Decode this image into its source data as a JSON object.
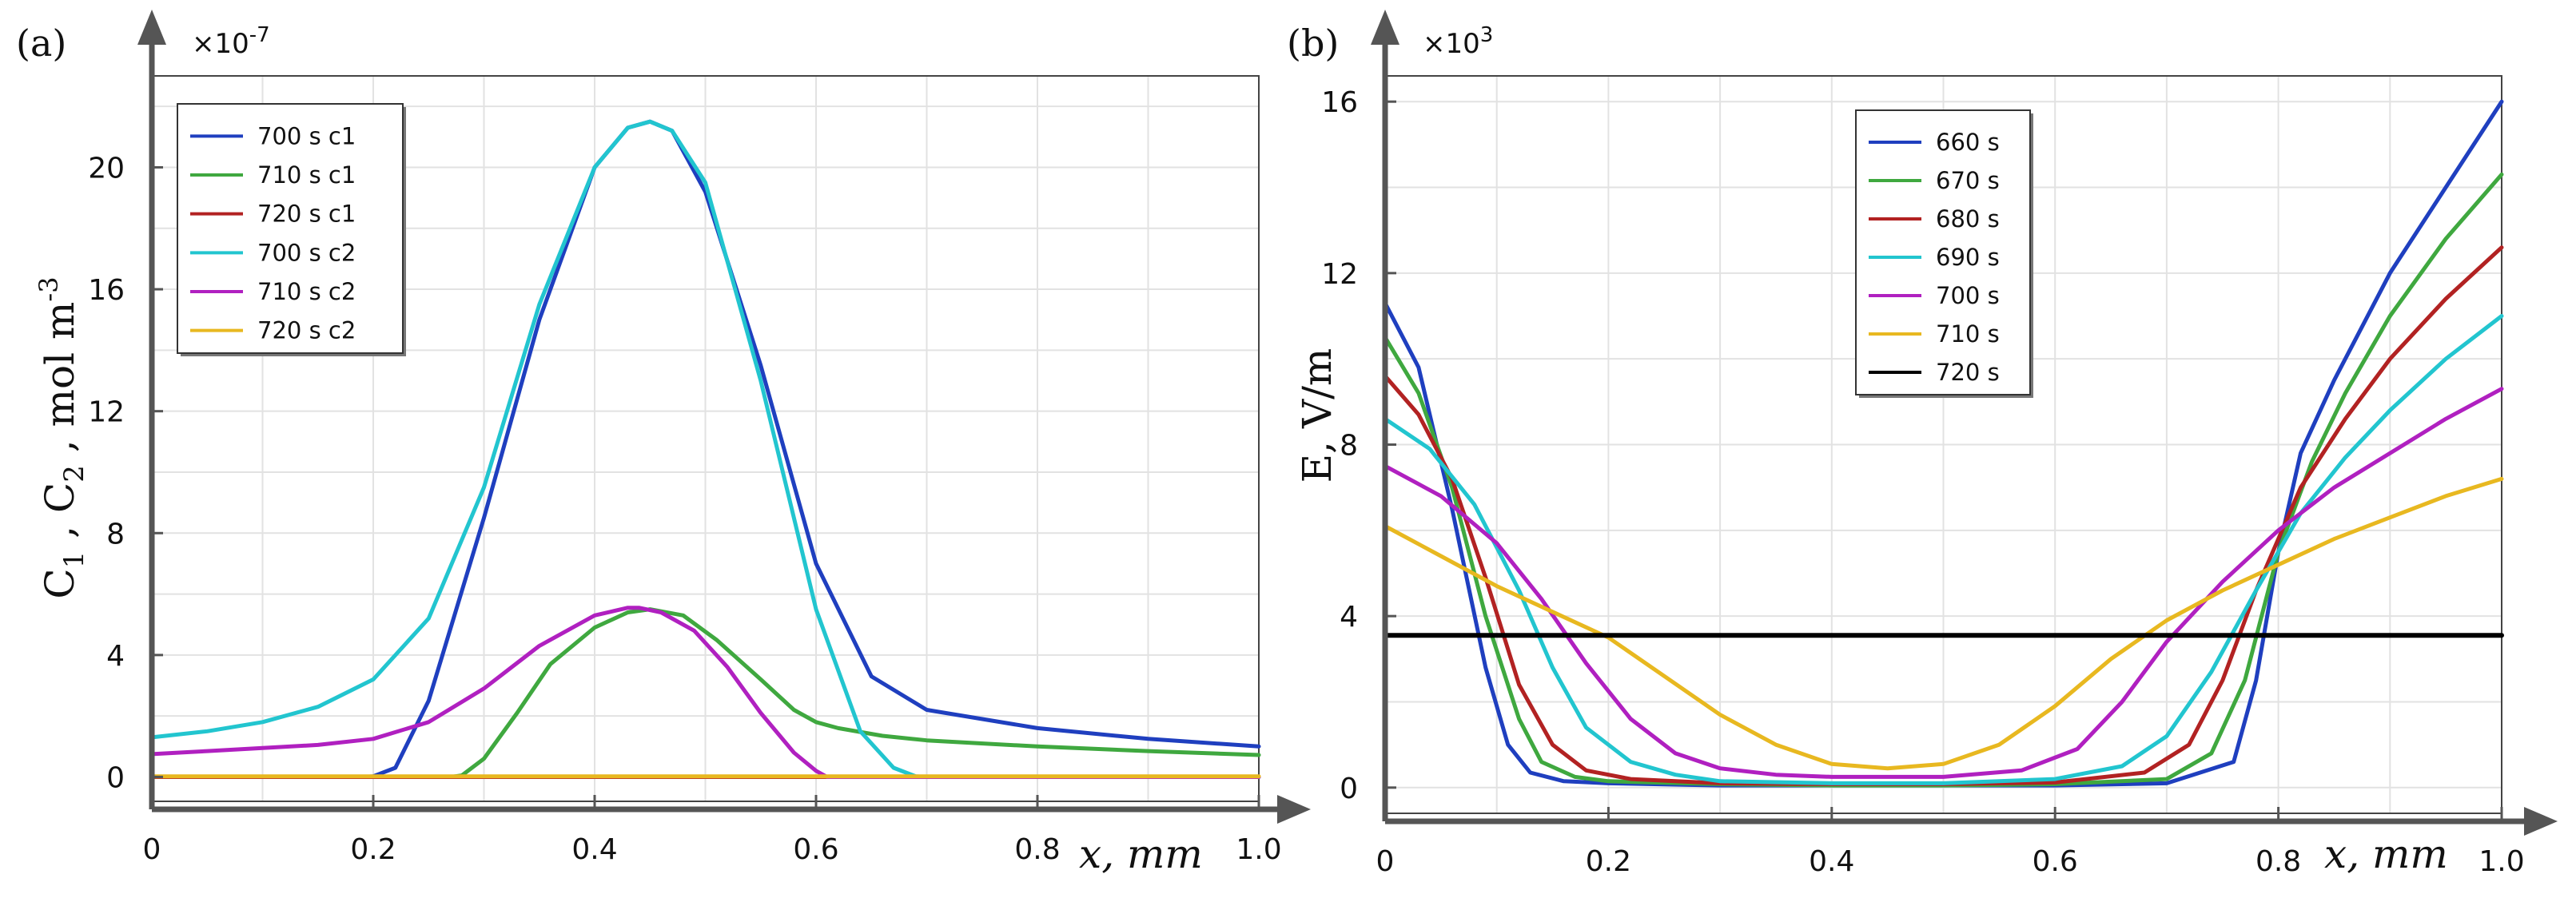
{
  "chart_data": [
    {
      "panel": "(a)",
      "type": "line",
      "multiplier": "×10",
      "multiplier_exp": "-7",
      "xlabel": "x, mm",
      "ylabel": {
        "c1_main": "C",
        "c1_sub": "1",
        "sep1": " , ",
        "c2_main": "C",
        "c2_sub": "2",
        "unit": " , mol m",
        "unit_exp": "-3"
      },
      "xlim": [
        0,
        1.0
      ],
      "ylim": [
        -0.8,
        23
      ],
      "x_ticks": [
        0,
        0.2,
        0.4,
        0.6,
        0.8,
        1.0
      ],
      "x_tick_labels": [
        "0",
        "0.2",
        "0.4",
        "0.6",
        "0.8",
        "1.0"
      ],
      "y_ticks": [
        0,
        4,
        8,
        12,
        16,
        20
      ],
      "y_tick_labels": [
        "0",
        "4",
        "8",
        "12",
        "16",
        "20"
      ],
      "grid": true,
      "legend_position": "top-left",
      "series": [
        {
          "name": "700 s c1",
          "color": "#1f3fbf",
          "x": [
            0,
            0.19,
            0.2,
            0.22,
            0.25,
            0.3,
            0.35,
            0.4,
            0.43,
            0.45,
            0.47,
            0.5,
            0.55,
            0.6,
            0.65,
            0.7,
            0.8,
            0.9,
            1.0
          ],
          "y": [
            0,
            0,
            0.02,
            0.3,
            2.5,
            8.5,
            15,
            20,
            21.3,
            21.5,
            21.2,
            19.2,
            13.5,
            7,
            3.3,
            2.2,
            1.6,
            1.25,
            1.0
          ]
        },
        {
          "name": "710 s c1",
          "color": "#3fa83f",
          "x": [
            0,
            0.27,
            0.28,
            0.3,
            0.33,
            0.36,
            0.4,
            0.43,
            0.45,
            0.48,
            0.51,
            0.55,
            0.58,
            0.6,
            0.62,
            0.66,
            0.7,
            0.8,
            0.9,
            1.0
          ],
          "y": [
            0,
            0,
            0.05,
            0.6,
            2.1,
            3.7,
            4.9,
            5.4,
            5.5,
            5.3,
            4.5,
            3.2,
            2.2,
            1.8,
            1.6,
            1.35,
            1.2,
            1.0,
            0.85,
            0.72
          ]
        },
        {
          "name": "720 s c1",
          "color": "#b22222",
          "x": [
            0,
            1.0
          ],
          "y": [
            0,
            0
          ]
        },
        {
          "name": "700 s c2",
          "color": "#22c5cf",
          "x": [
            0,
            0.05,
            0.1,
            0.15,
            0.2,
            0.25,
            0.3,
            0.35,
            0.4,
            0.43,
            0.45,
            0.47,
            0.5,
            0.55,
            0.6,
            0.64,
            0.67,
            0.69,
            0.7,
            1.0
          ],
          "y": [
            1.3,
            1.5,
            1.8,
            2.3,
            3.2,
            5.2,
            9.5,
            15.5,
            20,
            21.3,
            21.5,
            21.2,
            19.5,
            13,
            5.5,
            1.5,
            0.3,
            0.02,
            0,
            0
          ]
        },
        {
          "name": "710 s c2",
          "color": "#b020c0",
          "x": [
            0,
            0.05,
            0.1,
            0.15,
            0.2,
            0.25,
            0.3,
            0.35,
            0.4,
            0.43,
            0.44,
            0.46,
            0.49,
            0.52,
            0.55,
            0.58,
            0.6,
            0.61,
            1.0
          ],
          "y": [
            0.75,
            0.85,
            0.95,
            1.05,
            1.25,
            1.8,
            2.9,
            4.3,
            5.3,
            5.55,
            5.55,
            5.4,
            4.8,
            3.6,
            2.1,
            0.8,
            0.2,
            0,
            0
          ]
        },
        {
          "name": "720 s c2",
          "color": "#e8b820",
          "x": [
            0,
            1.0
          ],
          "y": [
            0.02,
            0.02
          ]
        }
      ]
    },
    {
      "panel": "(b)",
      "type": "line",
      "multiplier": "×10",
      "multiplier_exp": "3",
      "xlabel": "x, mm",
      "ylabel": "E, V/m",
      "xlim": [
        0,
        1.0
      ],
      "ylim": [
        -0.6,
        16.6
      ],
      "x_ticks": [
        0,
        0.2,
        0.4,
        0.6,
        0.8,
        1.0
      ],
      "x_tick_labels": [
        "0",
        "0.2",
        "0.4",
        "0.6",
        "0.8",
        "1.0"
      ],
      "y_ticks": [
        0,
        4,
        8,
        12,
        16
      ],
      "y_tick_labels": [
        "0",
        "4",
        "8",
        "12",
        "16"
      ],
      "grid": true,
      "legend_position": "top-center",
      "series": [
        {
          "name": "660 s",
          "color": "#1f3fbf",
          "x": [
            0,
            0.03,
            0.06,
            0.09,
            0.11,
            0.13,
            0.16,
            0.2,
            0.3,
            0.4,
            0.5,
            0.6,
            0.7,
            0.76,
            0.78,
            0.8,
            0.82,
            0.85,
            0.9,
            0.95,
            1.0
          ],
          "y": [
            11.3,
            9.8,
            6.5,
            2.8,
            1.0,
            0.35,
            0.15,
            0.1,
            0.05,
            0.05,
            0.05,
            0.05,
            0.1,
            0.6,
            2.5,
            5.5,
            7.8,
            9.5,
            12.0,
            14.0,
            16.0
          ]
        },
        {
          "name": "670 s",
          "color": "#3fa83f",
          "x": [
            0,
            0.03,
            0.06,
            0.09,
            0.12,
            0.14,
            0.17,
            0.2,
            0.3,
            0.4,
            0.5,
            0.6,
            0.7,
            0.74,
            0.77,
            0.8,
            0.83,
            0.86,
            0.9,
            0.95,
            1.0
          ],
          "y": [
            10.5,
            9.2,
            7.0,
            4.0,
            1.6,
            0.6,
            0.25,
            0.15,
            0.08,
            0.05,
            0.05,
            0.08,
            0.2,
            0.8,
            2.5,
            5.5,
            7.6,
            9.2,
            11.0,
            12.8,
            14.3
          ]
        },
        {
          "name": "680 s",
          "color": "#b22222",
          "x": [
            0,
            0.03,
            0.06,
            0.09,
            0.12,
            0.15,
            0.18,
            0.22,
            0.3,
            0.4,
            0.5,
            0.6,
            0.68,
            0.72,
            0.75,
            0.78,
            0.82,
            0.86,
            0.9,
            0.95,
            1.0
          ],
          "y": [
            9.6,
            8.7,
            7.2,
            4.9,
            2.4,
            1.0,
            0.4,
            0.2,
            0.1,
            0.08,
            0.08,
            0.12,
            0.35,
            1.0,
            2.5,
            4.6,
            7.0,
            8.6,
            10.0,
            11.4,
            12.6
          ]
        },
        {
          "name": "690 s",
          "color": "#22c5cf",
          "x": [
            0,
            0.04,
            0.08,
            0.12,
            0.15,
            0.18,
            0.22,
            0.26,
            0.3,
            0.4,
            0.5,
            0.6,
            0.66,
            0.7,
            0.74,
            0.78,
            0.82,
            0.86,
            0.9,
            0.95,
            1.0
          ],
          "y": [
            8.6,
            7.9,
            6.6,
            4.6,
            2.8,
            1.4,
            0.6,
            0.3,
            0.15,
            0.1,
            0.1,
            0.2,
            0.5,
            1.2,
            2.7,
            4.6,
            6.4,
            7.7,
            8.8,
            10.0,
            11.0
          ]
        },
        {
          "name": "700 s",
          "color": "#b020c0",
          "x": [
            0,
            0.05,
            0.1,
            0.14,
            0.18,
            0.22,
            0.26,
            0.3,
            0.35,
            0.4,
            0.5,
            0.57,
            0.62,
            0.66,
            0.7,
            0.75,
            0.8,
            0.85,
            0.9,
            0.95,
            1.0
          ],
          "y": [
            7.5,
            6.8,
            5.7,
            4.4,
            2.9,
            1.6,
            0.8,
            0.45,
            0.3,
            0.25,
            0.25,
            0.4,
            0.9,
            2.0,
            3.4,
            4.8,
            6.0,
            7.0,
            7.8,
            8.6,
            9.3
          ]
        },
        {
          "name": "710 s",
          "color": "#e8b820",
          "x": [
            0,
            0.05,
            0.1,
            0.15,
            0.2,
            0.25,
            0.3,
            0.35,
            0.4,
            0.45,
            0.5,
            0.55,
            0.6,
            0.65,
            0.7,
            0.75,
            0.8,
            0.85,
            0.9,
            0.95,
            1.0
          ],
          "y": [
            6.1,
            5.4,
            4.7,
            4.1,
            3.5,
            2.6,
            1.7,
            1.0,
            0.55,
            0.45,
            0.55,
            1.0,
            1.9,
            3.0,
            3.9,
            4.6,
            5.2,
            5.8,
            6.3,
            6.8,
            7.2
          ]
        },
        {
          "name": "720 s",
          "color": "#000000",
          "x": [
            0,
            1.0
          ],
          "y": [
            3.55,
            3.55
          ]
        }
      ]
    }
  ]
}
